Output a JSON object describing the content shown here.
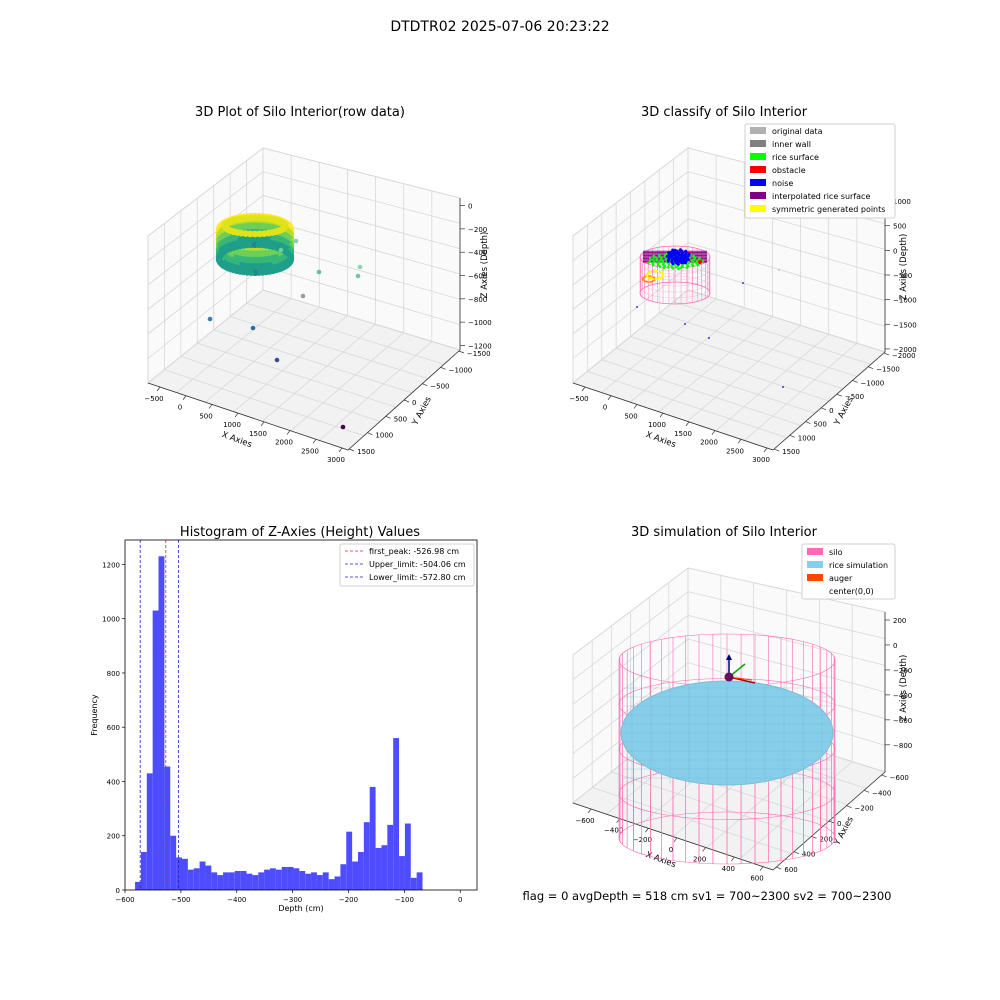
{
  "figure": {
    "suptitle": "DTDTR02 2025-07-06 20:23:22",
    "footer": "flag = 0     avgDepth = 518 cm  sv1 = 700~2300  sv2 = 700~2300"
  },
  "colors": {
    "hist_bar": "#4d4dff",
    "first_peak": "#d62728",
    "limits": "#1f1fcc",
    "silo": "#ff69b4",
    "rice": "#87ceeb",
    "auger": "#ff4500",
    "inner_wall": "#808080",
    "rice_surface": "#00ff00",
    "obstacle": "#ff0000",
    "noise": "#0000ff",
    "interp": "#800080",
    "sym": "#ffff00",
    "original": "#b0b0b0"
  },
  "chart_data": [
    {
      "type": "scatter",
      "title": "3D Plot of Silo Interior(row data)",
      "xlabel": "X Axies",
      "ylabel": "Y Axies",
      "zlabel": "Z Axies (Depth)",
      "x_ticks": [
        "−500",
        "0",
        "500",
        "1000",
        "1500",
        "2000",
        "2500",
        "3000"
      ],
      "y_ticks": [
        "1500",
        "1000",
        "500",
        "0",
        "−500",
        "−1000",
        "−1500"
      ],
      "z_ticks": [
        "0",
        "−200",
        "−400",
        "−600",
        "−800",
        "−1000",
        "−1200"
      ],
      "colormap": "viridis"
    },
    {
      "type": "scatter",
      "title": "3D classify of Silo Interior",
      "xlabel": "X Axies",
      "ylabel": "Y Axies",
      "zlabel": "Z Axies (Depth)",
      "x_ticks": [
        "−500",
        "0",
        "500",
        "1000",
        "1500",
        "2000",
        "2500",
        "3000"
      ],
      "y_ticks": [
        "1500",
        "1000",
        "500",
        "0",
        "−500",
        "−1000",
        "−1500",
        "−2000"
      ],
      "z_ticks": [
        "1000",
        "500",
        "0",
        "−500",
        "−1000",
        "−1500",
        "−2000"
      ],
      "legend": [
        "original data",
        "inner wall",
        "rice surface",
        "obstacle",
        "noise",
        "interpolated rice surface",
        "symmetric generated points"
      ],
      "legend_position": "top-right"
    },
    {
      "type": "bar",
      "title": "Histogram of Z-Axies (Height) Values",
      "xlabel": "Depth (cm)",
      "ylabel": "Frequency",
      "xlim": [
        -600,
        30
      ],
      "ylim": [
        0,
        1290
      ],
      "x_ticks": [
        -600,
        -500,
        -400,
        -300,
        -200,
        -100,
        0
      ],
      "y_ticks": [
        0,
        200,
        400,
        600,
        800,
        1000,
        1200
      ],
      "bin_start": -582,
      "bin_width": 10.5,
      "values": [
        30,
        140,
        430,
        1030,
        1230,
        455,
        200,
        120,
        115,
        75,
        80,
        105,
        90,
        65,
        55,
        65,
        65,
        70,
        70,
        60,
        55,
        65,
        75,
        80,
        75,
        85,
        85,
        80,
        70,
        60,
        65,
        55,
        65,
        40,
        50,
        95,
        215,
        105,
        140,
        250,
        380,
        155,
        165,
        240,
        560,
        125,
        245,
        45,
        65
      ],
      "vlines": [
        {
          "label": "first_peak: -526.98 cm",
          "x": -526.98,
          "color_key": "first_peak"
        },
        {
          "label": "Upper_limit: -504.06 cm",
          "x": -504.06,
          "color_key": "limits"
        },
        {
          "label": "Lower_limit: -572.80 cm",
          "x": -572.8,
          "color_key": "limits"
        }
      ],
      "legend_position": "top-right"
    },
    {
      "type": "surface",
      "title": "3D simulation of Silo Interior",
      "xlabel": "X Axies",
      "ylabel": "Y Axies",
      "zlabel": "Z Axies (Depth)",
      "x_ticks": [
        "−600",
        "−400",
        "−200",
        "0",
        "200",
        "400",
        "600"
      ],
      "y_ticks": [
        "600",
        "400",
        "200",
        "0",
        "−200",
        "−400",
        "−600"
      ],
      "z_ticks": [
        "200",
        "0",
        "−200",
        "−400",
        "−600",
        "−800"
      ],
      "legend": [
        "silo",
        "rice simulation",
        "auger",
        "center(0,0)"
      ],
      "legend_position": "top-right"
    }
  ]
}
